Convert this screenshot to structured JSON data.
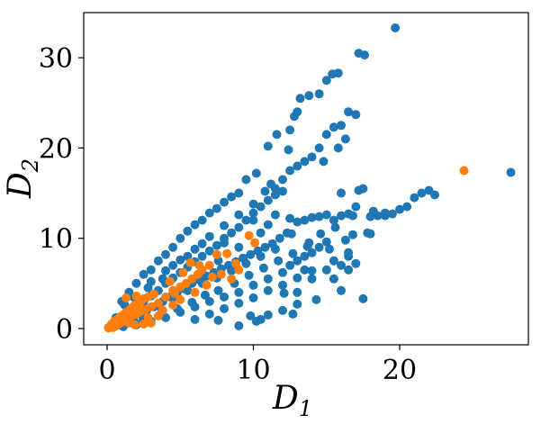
{
  "chart_data": {
    "type": "scatter",
    "xlabel": "D",
    "xlabel_sub": "1",
    "ylabel": "D",
    "ylabel_sub": "2",
    "xlim": [
      -1.6,
      28.8
    ],
    "ylim": [
      -1.8,
      35
    ],
    "xticks": [
      0,
      10,
      20
    ],
    "yticks": [
      0,
      10,
      20,
      30
    ],
    "grid": false,
    "legend": "none",
    "colors": {
      "blue": "#1f77b4",
      "orange": "#ff7f0e"
    },
    "series": [
      {
        "color": "blue",
        "points": [
          [
            0.1,
            0.1
          ],
          [
            0.3,
            0.2
          ],
          [
            0.5,
            0.6
          ],
          [
            0.8,
            0.4
          ],
          [
            1,
            1.2
          ],
          [
            1.3,
            0.7
          ],
          [
            1.5,
            1.8
          ],
          [
            1.8,
            1
          ],
          [
            2,
            2.5
          ],
          [
            2.2,
            1.6
          ],
          [
            2.5,
            3
          ],
          [
            2.7,
            2
          ],
          [
            3,
            3.6
          ],
          [
            3.2,
            2.4
          ],
          [
            3.5,
            4.2
          ],
          [
            3.8,
            3
          ],
          [
            4,
            5
          ],
          [
            4.3,
            3.5
          ],
          [
            4.5,
            5.6
          ],
          [
            4.8,
            4
          ],
          [
            5,
            6.2
          ],
          [
            5.3,
            4.4
          ],
          [
            5.5,
            6.8
          ],
          [
            5.8,
            5
          ],
          [
            6,
            7.4
          ],
          [
            6.3,
            5.4
          ],
          [
            6.5,
            8
          ],
          [
            6.8,
            5.8
          ],
          [
            7,
            8.6
          ],
          [
            7.3,
            6.2
          ],
          [
            7.5,
            9.2
          ],
          [
            7.8,
            6.6
          ],
          [
            8,
            10
          ],
          [
            8.3,
            7
          ],
          [
            8.5,
            10.6
          ],
          [
            8.8,
            7.4
          ],
          [
            9,
            11.2
          ],
          [
            9.3,
            7.8
          ],
          [
            9.5,
            12
          ],
          [
            9.8,
            8.2
          ],
          [
            10,
            12.8
          ],
          [
            10.3,
            8.6
          ],
          [
            10.5,
            13.5
          ],
          [
            10.8,
            9
          ],
          [
            11,
            14.2
          ],
          [
            11.3,
            9.4
          ],
          [
            11.5,
            14.8
          ],
          [
            11.8,
            10
          ],
          [
            12,
            15.2
          ],
          [
            12.3,
            10.6
          ],
          [
            1,
            3
          ],
          [
            1.5,
            4
          ],
          [
            2,
            5
          ],
          [
            2.5,
            6
          ],
          [
            3,
            6.5
          ],
          [
            3.5,
            7.5
          ],
          [
            4,
            8.2
          ],
          [
            4.5,
            9
          ],
          [
            5,
            10
          ],
          [
            5.5,
            10.8
          ],
          [
            6,
            11.5
          ],
          [
            6.5,
            12
          ],
          [
            7,
            12.8
          ],
          [
            7.5,
            13.3
          ],
          [
            8,
            14
          ],
          [
            8.5,
            14.6
          ],
          [
            9,
            15
          ],
          [
            2,
            0.4
          ],
          [
            3,
            0.8
          ],
          [
            4,
            1.2
          ],
          [
            5,
            1.8
          ],
          [
            6,
            2.4
          ],
          [
            7,
            3
          ],
          [
            8,
            3.5
          ],
          [
            9,
            4
          ],
          [
            10,
            4.8
          ],
          [
            11,
            5.5
          ],
          [
            12,
            6.2
          ],
          [
            12.5,
            7
          ],
          [
            13,
            7.5
          ],
          [
            13.5,
            8
          ],
          [
            14,
            8.4
          ],
          [
            14.5,
            9
          ],
          [
            15,
            9.6
          ],
          [
            11,
            1.5
          ],
          [
            10.5,
            1
          ],
          [
            12,
            2
          ],
          [
            13,
            4
          ],
          [
            14,
            5.5
          ],
          [
            15,
            6.5
          ],
          [
            16,
            7
          ],
          [
            16.5,
            8
          ],
          [
            11.5,
            15.5
          ],
          [
            12,
            16.5
          ],
          [
            12.5,
            17.5
          ],
          [
            13,
            18
          ],
          [
            13.5,
            18.5
          ],
          [
            14,
            19
          ],
          [
            14.5,
            20
          ],
          [
            15,
            21.5
          ],
          [
            15.5,
            22.3
          ],
          [
            16,
            22.5
          ],
          [
            16.3,
            21
          ],
          [
            15.8,
            20
          ],
          [
            12.5,
            22
          ],
          [
            12.8,
            23.5
          ],
          [
            13.2,
            25.5
          ],
          [
            13.8,
            25.8
          ],
          [
            14.5,
            26
          ],
          [
            15,
            27.5
          ],
          [
            15.4,
            28.2
          ],
          [
            15.8,
            28.3
          ],
          [
            17.2,
            30.5
          ],
          [
            17.6,
            30.3
          ],
          [
            19.7,
            33.3
          ],
          [
            9.5,
            16.5
          ],
          [
            10.2,
            17.2
          ],
          [
            11,
            20.2
          ],
          [
            11.6,
            21.5
          ],
          [
            12.4,
            19.8
          ],
          [
            13,
            24
          ],
          [
            14.8,
            18.5
          ],
          [
            16.5,
            24
          ],
          [
            17,
            23.7
          ],
          [
            11.5,
            12.6
          ],
          [
            12.5,
            12.2
          ],
          [
            13,
            11.8
          ],
          [
            13.5,
            12
          ],
          [
            14,
            12.3
          ],
          [
            14.5,
            12.4
          ],
          [
            15,
            12.6
          ],
          [
            15.5,
            12
          ],
          [
            16,
            12.5
          ],
          [
            16.5,
            12.7
          ],
          [
            17,
            13.5
          ],
          [
            18,
            12.4
          ],
          [
            18.5,
            12.5
          ],
          [
            19,
            12.5
          ],
          [
            19.5,
            12.7
          ],
          [
            20,
            13.2
          ],
          [
            20.5,
            13.5
          ],
          [
            21,
            14.5
          ],
          [
            21.5,
            15
          ],
          [
            22,
            15.3
          ],
          [
            22.4,
            14.8
          ],
          [
            18.2,
            13
          ],
          [
            17.5,
            15.5
          ],
          [
            17.2,
            15.3
          ],
          [
            16,
            15
          ],
          [
            15.6,
            11.2
          ],
          [
            16.3,
            9.8
          ],
          [
            16.8,
            10.4
          ],
          [
            12.6,
            10.5
          ],
          [
            13.8,
            9.5
          ],
          [
            14.6,
            10.5
          ],
          [
            15.2,
            8.8
          ],
          [
            16.5,
            8.4
          ],
          [
            15.5,
            7.5
          ],
          [
            13.5,
            6.5
          ],
          [
            15.5,
            5.5
          ],
          [
            16.5,
            6.5
          ],
          [
            17,
            7.2
          ],
          [
            11,
            11.5
          ],
          [
            10,
            12
          ],
          [
            10.5,
            10.6
          ],
          [
            9,
            9
          ],
          [
            8,
            9.5
          ],
          [
            7.6,
            7.5
          ],
          [
            6.5,
            9.4
          ],
          [
            5.5,
            8
          ],
          [
            4.5,
            7
          ],
          [
            3.8,
            5.5
          ],
          [
            2.8,
            4.5
          ],
          [
            1.8,
            3.5
          ],
          [
            1.2,
            2.6
          ],
          [
            0.6,
            1.2
          ],
          [
            0.4,
            0.3
          ],
          [
            1.1,
            0.2
          ],
          [
            2.4,
            0.7
          ],
          [
            3.6,
            1.5
          ],
          [
            4.8,
            2.2
          ],
          [
            5.8,
            2.9
          ],
          [
            6.7,
            3.7
          ],
          [
            7.6,
            4.2
          ],
          [
            8.7,
            5
          ],
          [
            9.7,
            5.9
          ],
          [
            10.7,
            6.7
          ],
          [
            11.7,
            7.5
          ],
          [
            12.7,
            8.3
          ],
          [
            13.7,
            9.1
          ],
          [
            2.5,
            1.2
          ],
          [
            3.5,
            2.5
          ],
          [
            4.5,
            3.4
          ],
          [
            5.5,
            4.2
          ],
          [
            6.5,
            5
          ],
          [
            7.5,
            5.6
          ],
          [
            8.5,
            6.4
          ],
          [
            9.5,
            7.2
          ],
          [
            10.5,
            8
          ],
          [
            11.5,
            8.8
          ],
          [
            3,
            5.2
          ],
          [
            4,
            6.4
          ],
          [
            5,
            7.6
          ],
          [
            6,
            8.8
          ],
          [
            7,
            10.2
          ],
          [
            8,
            11.4
          ],
          [
            9,
            12.6
          ],
          [
            10,
            13.8
          ],
          [
            10.8,
            15.2
          ],
          [
            11.2,
            16
          ],
          [
            6,
            1
          ],
          [
            7,
            1.6
          ],
          [
            8,
            2.2
          ],
          [
            9,
            2.8
          ],
          [
            10,
            3.4
          ],
          [
            11,
            4.2
          ],
          [
            12,
            4.8
          ],
          [
            13,
            5.6
          ],
          [
            14,
            6.4
          ],
          [
            9.8,
            1.4
          ],
          [
            13,
            2.7
          ],
          [
            12.7,
            1.6
          ],
          [
            14.3,
            3.2
          ],
          [
            16,
            4.2
          ],
          [
            17.5,
            3.3
          ],
          [
            10.2,
            0.8
          ],
          [
            9,
            0.3
          ],
          [
            18,
            10.5
          ],
          [
            16.8,
            12.5
          ],
          [
            17.8,
            10.6
          ],
          [
            19,
            12.8
          ],
          [
            7.6,
            0.9
          ],
          [
            12.1,
            3.9
          ],
          [
            27.6,
            17.3
          ]
        ]
      },
      {
        "color": "orange",
        "points": [
          [
            0.1,
            0.05
          ],
          [
            0.2,
            0.2
          ],
          [
            0.3,
            0.5
          ],
          [
            0.4,
            0.1
          ],
          [
            0.5,
            0.8
          ],
          [
            0.6,
            0.3
          ],
          [
            0.7,
            1
          ],
          [
            0.8,
            0.5
          ],
          [
            0.9,
            1.3
          ],
          [
            1,
            0.7
          ],
          [
            1.1,
            1.5
          ],
          [
            1.2,
            0.9
          ],
          [
            1.3,
            1.8
          ],
          [
            1.4,
            1.1
          ],
          [
            1.5,
            2
          ],
          [
            1.6,
            1.3
          ],
          [
            1.7,
            2.3
          ],
          [
            1.8,
            1.5
          ],
          [
            1.9,
            2.6
          ],
          [
            2,
            1.6
          ],
          [
            2.1,
            2.8
          ],
          [
            2.2,
            1.8
          ],
          [
            2.3,
            3
          ],
          [
            2.4,
            2
          ],
          [
            2.5,
            3.3
          ],
          [
            2.6,
            2.1
          ],
          [
            2.8,
            3.5
          ],
          [
            3,
            2.4
          ],
          [
            1.3,
            3.4
          ],
          [
            2,
            3.6
          ],
          [
            3.2,
            3.8
          ],
          [
            3.5,
            2.8
          ],
          [
            4,
            3.5
          ],
          [
            4.5,
            4.2
          ],
          [
            5,
            4.6
          ],
          [
            5.4,
            5
          ],
          [
            5.8,
            5.5
          ],
          [
            6.2,
            6
          ],
          [
            6.5,
            6.5
          ],
          [
            7,
            7
          ],
          [
            5.2,
            6.2
          ],
          [
            5.7,
            7.3
          ],
          [
            6.3,
            7
          ],
          [
            7.5,
            8.2
          ],
          [
            8.2,
            8.3
          ],
          [
            8.8,
            7.2
          ],
          [
            9,
            6.5
          ],
          [
            8.5,
            5.5
          ],
          [
            7.8,
            6
          ],
          [
            6.8,
            4.8
          ],
          [
            6,
            4
          ],
          [
            5,
            3.2
          ],
          [
            4.5,
            2.6
          ],
          [
            3.8,
            2
          ],
          [
            3.5,
            1.4
          ],
          [
            2.8,
            1.2
          ],
          [
            3,
            0.6
          ],
          [
            2.5,
            0.5
          ],
          [
            9.7,
            10.3
          ],
          [
            10.1,
            9.5
          ],
          [
            4.3,
            5.2
          ],
          [
            4.6,
            3.9
          ],
          [
            7.2,
            5.7
          ],
          [
            1.9,
            0.4
          ],
          [
            1.5,
            0.6
          ],
          [
            24.4,
            17.5
          ]
        ]
      }
    ]
  }
}
